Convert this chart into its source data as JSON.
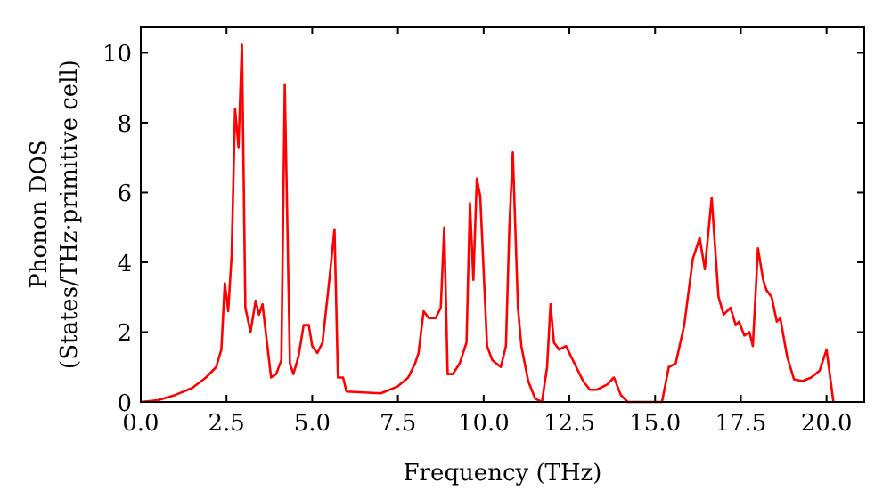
{
  "chart_data": {
    "type": "line",
    "xlabel": "Frequency (THz)",
    "ylabel": "Phonon DOS\n(States/THz·primitive cell)",
    "xlim": [
      0,
      21.1
    ],
    "ylim": [
      0,
      10.75
    ],
    "xticks": [
      {
        "value": 0,
        "label": "0.0"
      },
      {
        "value": 2.5,
        "label": "2.5"
      },
      {
        "value": 5,
        "label": "5.0"
      },
      {
        "value": 7.5,
        "label": "7.5"
      },
      {
        "value": 10,
        "label": "10.0"
      },
      {
        "value": 12.5,
        "label": "12.5"
      },
      {
        "value": 15,
        "label": "15.0"
      },
      {
        "value": 17.5,
        "label": "17.5"
      },
      {
        "value": 20,
        "label": "20.0"
      }
    ],
    "yticks": [
      0,
      2,
      4,
      6,
      8,
      10
    ],
    "marker": "none",
    "line_style": "solid",
    "x": [
      0,
      0.5,
      1,
      1.5,
      1.9,
      2.2,
      2.35,
      2.45,
      2.55,
      2.65,
      2.75,
      2.85,
      2.95,
      3.05,
      3.2,
      3.35,
      3.45,
      3.55,
      3.8,
      3.95,
      4.1,
      4.2,
      4.35,
      4.45,
      4.6,
      4.75,
      4.9,
      5.0,
      5.15,
      5.3,
      5.5,
      5.65,
      5.75,
      5.9,
      6.0,
      7.0,
      7.5,
      7.8,
      8.0,
      8.1,
      8.25,
      8.4,
      8.6,
      8.75,
      8.85,
      8.95,
      9.1,
      9.3,
      9.5,
      9.6,
      9.7,
      9.8,
      9.9,
      10.1,
      10.25,
      10.5,
      10.65,
      10.75,
      10.85,
      11.0,
      11.1,
      11.3,
      11.5,
      11.7,
      11.85,
      11.95,
      12.05,
      12.2,
      12.4,
      12.6,
      12.9,
      13.1,
      13.3,
      13.6,
      13.8,
      14.0,
      14.2,
      15.2,
      15.4,
      15.6,
      15.85,
      16.1,
      16.3,
      16.45,
      16.65,
      16.85,
      17.0,
      17.2,
      17.35,
      17.45,
      17.6,
      17.75,
      17.85,
      18.0,
      18.15,
      18.25,
      18.4,
      18.55,
      18.65,
      18.85,
      19.05,
      19.3,
      19.55,
      19.8,
      20.0,
      20.2
    ],
    "series": [
      {
        "color": "#ff0000",
        "values": [
          0,
          0.05,
          0.2,
          0.4,
          0.7,
          1.0,
          1.5,
          3.4,
          2.6,
          4.2,
          8.4,
          7.3,
          10.25,
          2.7,
          2.0,
          2.9,
          2.5,
          2.8,
          0.7,
          0.8,
          1.2,
          9.1,
          1.1,
          0.8,
          1.3,
          2.2,
          2.2,
          1.6,
          1.4,
          1.7,
          3.5,
          4.95,
          0.7,
          0.7,
          0.3,
          0.25,
          0.45,
          0.7,
          1.1,
          1.4,
          2.6,
          2.4,
          2.4,
          2.7,
          5.0,
          0.8,
          0.8,
          1.1,
          1.7,
          5.7,
          3.5,
          6.4,
          5.9,
          1.6,
          1.2,
          1.0,
          1.6,
          5.0,
          7.15,
          2.7,
          1.6,
          0.6,
          0.1,
          0,
          1.0,
          2.8,
          1.7,
          1.5,
          1.6,
          1.2,
          0.6,
          0.35,
          0.35,
          0.5,
          0.7,
          0.2,
          0,
          0,
          1.0,
          1.1,
          2.2,
          4.1,
          4.7,
          3.8,
          5.85,
          3.0,
          2.5,
          2.7,
          2.2,
          2.3,
          1.9,
          2.0,
          1.6,
          4.4,
          3.5,
          3.2,
          3.0,
          2.3,
          2.4,
          1.3,
          0.65,
          0.6,
          0.7,
          0.9,
          1.5,
          0
        ]
      }
    ]
  }
}
